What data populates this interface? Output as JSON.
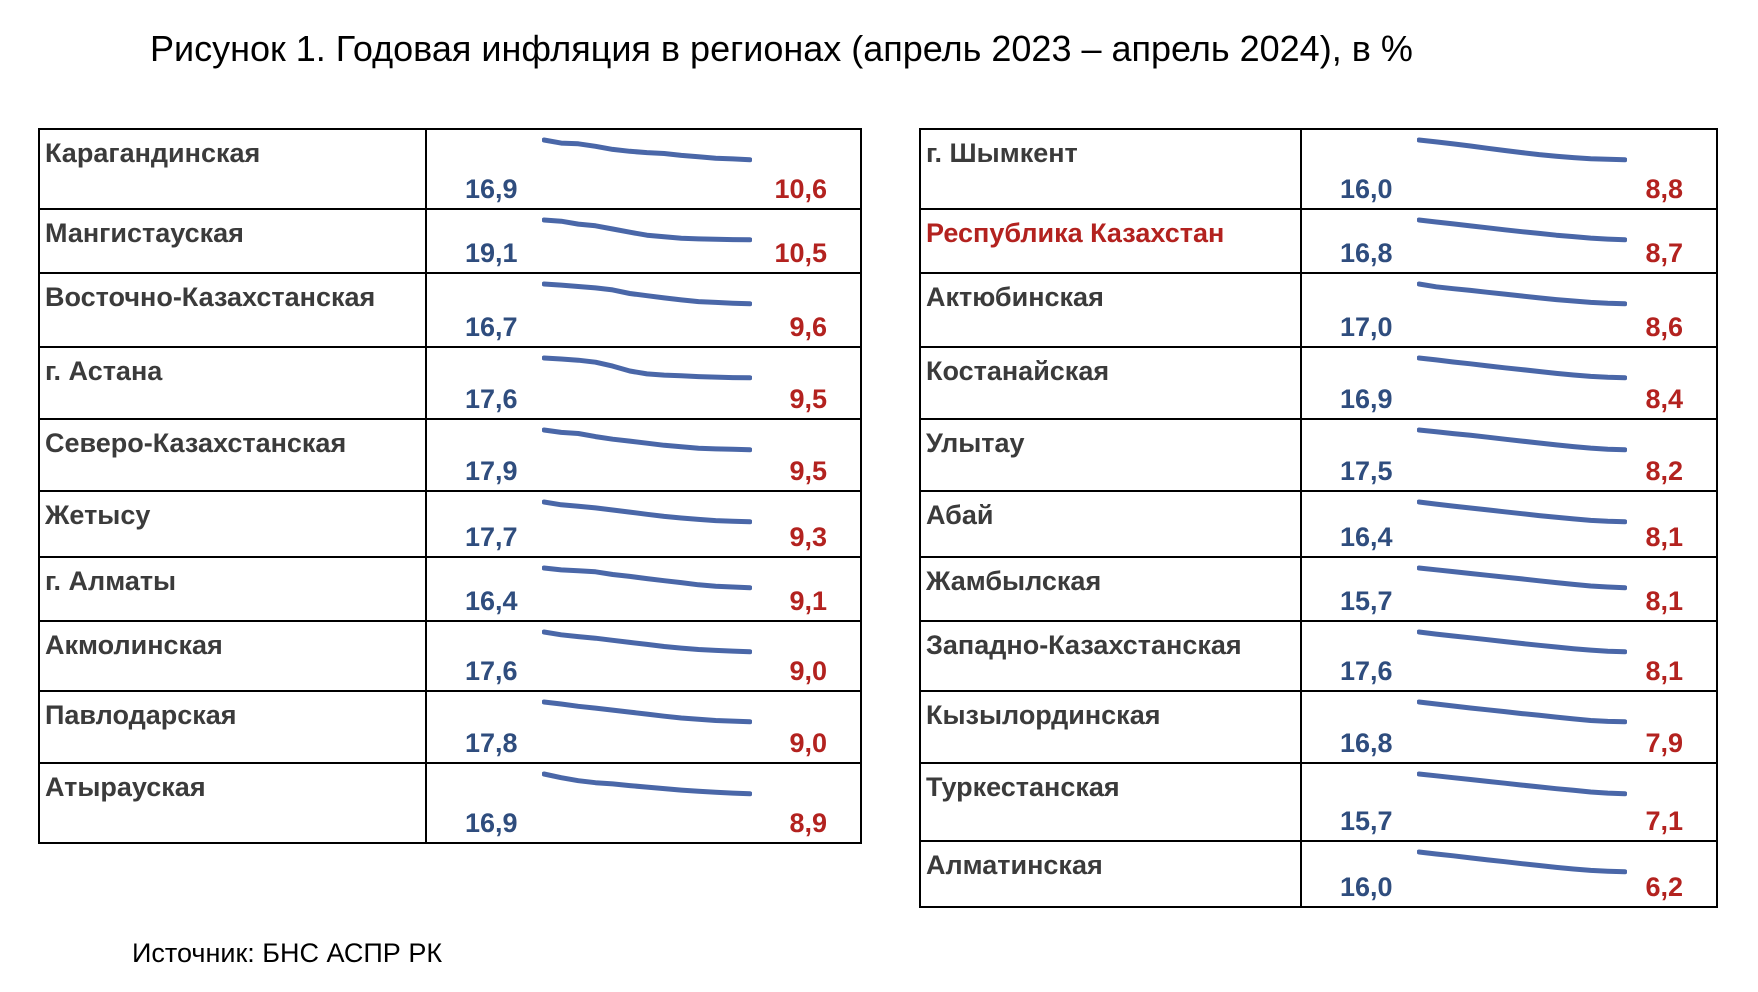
{
  "title": "Рисунок 1. Годовая инфляция в регионах (апрель 2023 – апрель 2024), в %",
  "source": "Источник: БНС АСПР РК",
  "colors": {
    "start_value": "#2f4d7e",
    "end_value": "#b3221f",
    "line": "#4a67a8",
    "highlight": "#b3221f",
    "name": "#3b3b3b"
  },
  "chart_data": {
    "type": "table",
    "title": "Рисунок 1. Годовая инфляция в регионах (апрель 2023 – апрель 2024), в %",
    "columns": [
      "region",
      "april_2023",
      "trend",
      "april_2024"
    ],
    "tables": [
      {
        "rows": [
          {
            "region": "Карагандинская",
            "start": "16,9",
            "end": "10,6",
            "trend": [
              16.9,
              15.9,
              15.7,
              14.9,
              13.9,
              13.3,
              12.9,
              12.6,
              12.0,
              11.6,
              11.1,
              10.9,
              10.6
            ]
          },
          {
            "region": "Мангистауская",
            "start": "19,1",
            "end": "10,5",
            "trend": [
              19.1,
              18.6,
              17.3,
              16.6,
              15.2,
              13.8,
              12.5,
              11.8,
              11.2,
              10.9,
              10.7,
              10.6,
              10.5
            ]
          },
          {
            "region": "Восточно-Казахстанская",
            "start": "16,7",
            "end": "9,6",
            "trend": [
              16.7,
              16.3,
              15.8,
              15.3,
              14.6,
              13.3,
              12.5,
              11.7,
              11.0,
              10.4,
              10.1,
              9.8,
              9.6
            ]
          },
          {
            "region": "г. Астана",
            "start": "17,6",
            "end": "9,5",
            "trend": [
              17.6,
              17.2,
              16.7,
              15.9,
              14.3,
              12.3,
              11.1,
              10.6,
              10.3,
              10.0,
              9.8,
              9.6,
              9.5
            ]
          },
          {
            "region": "Северо-Казахстанская",
            "start": "17,9",
            "end": "9,5",
            "trend": [
              17.9,
              16.9,
              16.4,
              15.1,
              14.0,
              13.2,
              12.3,
              11.4,
              10.8,
              10.2,
              9.9,
              9.7,
              9.5
            ]
          },
          {
            "region": "Жетысу",
            "start": "17,7",
            "end": "9,3",
            "trend": [
              17.7,
              16.5,
              15.9,
              15.2,
              14.3,
              13.4,
              12.5,
              11.6,
              10.9,
              10.3,
              9.8,
              9.5,
              9.3
            ]
          },
          {
            "region": "г. Алматы",
            "start": "16,4",
            "end": "9,1",
            "trend": [
              16.4,
              15.7,
              15.4,
              15.0,
              14.0,
              13.3,
              12.5,
              11.7,
              11.0,
              10.2,
              9.7,
              9.4,
              9.1
            ]
          },
          {
            "region": "Акмолинская",
            "start": "17,6",
            "end": "9,0",
            "trend": [
              17.6,
              16.4,
              15.6,
              14.9,
              14.0,
              13.1,
              12.2,
              11.3,
              10.6,
              10.0,
              9.6,
              9.3,
              9.0
            ]
          },
          {
            "region": "Павлодарская",
            "start": "17,8",
            "end": "9,0",
            "trend": [
              17.8,
              16.9,
              15.9,
              15.1,
              14.2,
              13.3,
              12.4,
              11.5,
              10.7,
              10.1,
              9.6,
              9.3,
              9.0
            ]
          },
          {
            "region": "Атырауская",
            "start": "16,9",
            "end": "8,9",
            "trend": [
              16.9,
              15.4,
              14.2,
              13.4,
              12.9,
              12.2,
              11.6,
              11.0,
              10.4,
              9.9,
              9.5,
              9.2,
              8.9
            ]
          }
        ]
      },
      {
        "rows": [
          {
            "region": "г. Шымкент",
            "start": "16,0",
            "end": "8,8",
            "trend": [
              16.0,
              15.3,
              14.6,
              13.8,
              13.0,
              12.2,
              11.4,
              10.7,
              10.1,
              9.6,
              9.2,
              9.0,
              8.8
            ]
          },
          {
            "region": "Республика Казахстан",
            "start": "16,8",
            "end": "8,7",
            "trend": [
              16.8,
              16.0,
              15.2,
              14.4,
              13.6,
              12.8,
              12.0,
              11.3,
              10.6,
              10.0,
              9.4,
              9.0,
              8.7
            ]
          },
          {
            "region": "Актюбинская",
            "start": "17,0",
            "end": "8,6",
            "trend": [
              17.0,
              15.8,
              15.0,
              14.3,
              13.5,
              12.7,
              11.9,
              11.1,
              10.4,
              9.8,
              9.2,
              8.8,
              8.6
            ]
          },
          {
            "region": "Костанайская",
            "start": "16,9",
            "end": "8,4",
            "trend": [
              16.9,
              16.1,
              15.2,
              14.4,
              13.5,
              12.7,
              11.9,
              11.1,
              10.3,
              9.6,
              9.0,
              8.6,
              8.4
            ]
          },
          {
            "region": "Улытау",
            "start": "17,5",
            "end": "8,2",
            "trend": [
              17.5,
              16.7,
              15.8,
              15.0,
              14.1,
              13.2,
              12.3,
              11.4,
              10.5,
              9.7,
              9.0,
              8.5,
              8.2
            ]
          },
          {
            "region": "Абай",
            "start": "16,4",
            "end": "8,1",
            "trend": [
              16.4,
              15.5,
              14.7,
              13.9,
              13.1,
              12.3,
              11.5,
              10.7,
              10.0,
              9.3,
              8.7,
              8.3,
              8.1
            ]
          },
          {
            "region": "Жамбылская",
            "start": "15,7",
            "end": "8,1",
            "trend": [
              15.7,
              15.0,
              14.3,
              13.6,
              12.9,
              12.2,
              11.5,
              10.8,
              10.1,
              9.4,
              8.8,
              8.4,
              8.1
            ]
          },
          {
            "region": "Западно-Казахстанская",
            "start": "17,6",
            "end": "8,1",
            "trend": [
              17.6,
              16.6,
              15.7,
              14.8,
              13.9,
              13.0,
              12.1,
              11.2,
              10.4,
              9.6,
              8.9,
              8.4,
              8.1
            ]
          },
          {
            "region": "Кызылординская",
            "start": "16,8",
            "end": "7,9",
            "trend": [
              16.8,
              15.9,
              15.0,
              14.1,
              13.3,
              12.5,
              11.6,
              10.8,
              10.0,
              9.2,
              8.5,
              8.1,
              7.9
            ]
          },
          {
            "region": "Туркестанская",
            "start": "15,7",
            "end": "7,1",
            "trend": [
              15.7,
              14.9,
              14.1,
              13.3,
              12.5,
              11.7,
              10.9,
              10.1,
              9.3,
              8.6,
              7.9,
              7.4,
              7.1
            ]
          },
          {
            "region": "Алматинская",
            "start": "16,0",
            "end": "6,2",
            "trend": [
              16.0,
              15.0,
              14.1,
              13.1,
              12.1,
              11.2,
              10.2,
              9.3,
              8.4,
              7.6,
              6.9,
              6.5,
              6.2
            ]
          }
        ]
      }
    ]
  }
}
